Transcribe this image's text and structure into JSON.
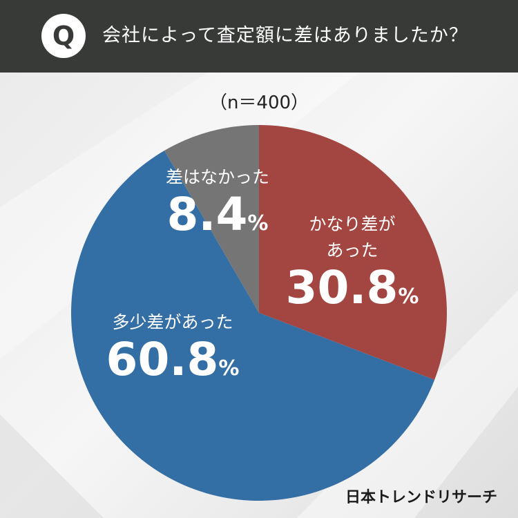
{
  "header": {
    "q_mark": "Q",
    "question": "会社によって査定額に差はありましたか？"
  },
  "sample": "（n＝400）",
  "colors": {
    "header_bg": "#373a37",
    "red": "#a34541",
    "blue": "#336ea5",
    "gray": "#757575"
  },
  "chart_data": {
    "type": "pie",
    "title": "",
    "slices": [
      {
        "label": "かなり差があった",
        "value": 30.8,
        "color": "#a34541"
      },
      {
        "label": "多少差があった",
        "value": 60.8,
        "color": "#336ea5"
      },
      {
        "label": "差はなかった",
        "value": 8.4,
        "color": "#757575"
      }
    ]
  },
  "labels": {
    "red_name_1": "かなり差が",
    "red_name_2": "あった",
    "red_pct": "30.8",
    "blue_name": "多少差があった",
    "blue_pct": "60.8",
    "gray_name": "差はなかった",
    "gray_pct": "8.4",
    "unit": "%"
  },
  "logo": "日本トレンドリサーチ"
}
